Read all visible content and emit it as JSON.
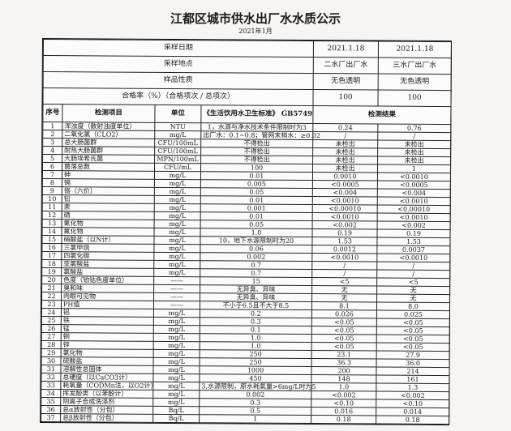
{
  "title": "江都区城市供水出厂水水质公示",
  "subtitle": "2021年1月",
  "meta": [
    {
      "label": "采样日期",
      "v1": "2021.1.18",
      "v2": "2021.1.18"
    },
    {
      "label": "采样地点",
      "v1": "二水厂出厂水",
      "v2": "三水厂出厂水"
    },
    {
      "label": "样品性质",
      "v1": "无色透明",
      "v2": "无色透明"
    },
    {
      "label": "合格率（%）（合格项次 / 总项次）",
      "v1": "100",
      "v2": "100"
    }
  ],
  "headers": {
    "no": "序号",
    "item": "检测项目",
    "unit": "单位",
    "standard": "《生活饮用水卫生标准》 GB5749",
    "result": "检测结果"
  },
  "rows": [
    [
      "1",
      "浑浊度（散射浊度单位）",
      "NTU",
      "1，水源与净水技术条件限制时为3",
      "0.24",
      "0.76"
    ],
    [
      "2",
      "二氧化氯（CLO2）",
      "mg/L",
      "出厂水：0.1~0.8；管网末梢水：≥0.02",
      "/",
      "/"
    ],
    [
      "3",
      "总大肠菌群",
      "CFU/100mL",
      "不得检出",
      "未检出",
      "未检出"
    ],
    [
      "4",
      "耐热大肠菌群",
      "CFU/100mL",
      "不得检出",
      "未检出",
      "未检出"
    ],
    [
      "5",
      "大肠埃希氏菌",
      "MPN/100mL",
      "不得检出",
      "未检出",
      "未检出"
    ],
    [
      "6",
      "菌落总数",
      "CFU/mL",
      "100",
      "未检出",
      "1"
    ],
    [
      "7",
      "砷",
      "mg/L",
      "0.01",
      "0.0010",
      "<0.0010"
    ],
    [
      "8",
      "镉",
      "mg/L",
      "0.005",
      "<0.0005",
      "<0.0005"
    ],
    [
      "9",
      "铬（六价）",
      "mg/L",
      "0.05",
      "<0.004",
      "<0.004"
    ],
    [
      "10",
      "铅",
      "mg/L",
      "0.01",
      "<0.0010",
      "<0.0010"
    ],
    [
      "11",
      "汞",
      "mg/L",
      "0.001",
      "<0.00010",
      "<0.00010"
    ],
    [
      "12",
      "硒",
      "mg/L",
      "0.01",
      "<0.0010",
      "<0.0010"
    ],
    [
      "13",
      "氰化物",
      "mg/L",
      "0.05",
      "<0.002",
      "<0.002"
    ],
    [
      "14",
      "氟化物",
      "mg/L",
      "1.0",
      "0.19",
      "0.19"
    ],
    [
      "15",
      "硝酸盐（以N计）",
      "mg/L",
      "10，地下水源限制时为20",
      "1.53",
      "1.53"
    ],
    [
      "16",
      "三氯甲烷",
      "mg/L",
      "0.06",
      "0.0012",
      "0.0037"
    ],
    [
      "17",
      "四氯化碳",
      "mg/L",
      "0.002",
      "<0.0010",
      "<0.0010"
    ],
    [
      "18",
      "亚氯酸盐",
      "mg/L",
      "0.7",
      "/",
      "/"
    ],
    [
      "19",
      "氯酸盐",
      "mg/L",
      "0.7",
      "/",
      "/"
    ],
    [
      "20",
      "色度（铂钴色度单位）",
      "——",
      "15",
      "<5",
      "<5"
    ],
    [
      "21",
      "臭和味",
      "——",
      "无异臭、异味",
      "无",
      "无"
    ],
    [
      "22",
      "肉眼可见物",
      "——",
      "无异臭、异味",
      "无",
      "无"
    ],
    [
      "23",
      "PH值",
      "——",
      "不小于6.5且不大于8.5",
      "8.1",
      "8.0"
    ],
    [
      "24",
      "铝",
      "mg/L",
      "0.2",
      "0.026",
      "0.025"
    ],
    [
      "25",
      "铁",
      "mg/L",
      "0.3",
      "<0.05",
      "<0.05"
    ],
    [
      "26",
      "锰",
      "mg/L",
      "0.1",
      "<0.05",
      "<0.05"
    ],
    [
      "27",
      "铜",
      "mg/L",
      "1.0",
      "<0.05",
      "<0.05"
    ],
    [
      "28",
      "锌",
      "mg/L",
      "1.0",
      "<0.05",
      "<0.05"
    ],
    [
      "29",
      "氯化物",
      "mg/L",
      "250",
      "23.1",
      "27.9"
    ],
    [
      "30",
      "硫酸盐",
      "mg/L",
      "250",
      "36.3",
      "36.0"
    ],
    [
      "31",
      "溶解性总固体",
      "mg/L",
      "1000",
      "200",
      "214"
    ],
    [
      "32",
      "总硬度（以CaCO3计）",
      "mg/L",
      "450",
      "148",
      "161"
    ],
    [
      "33",
      "耗氧量（CODMn法，以O2计）",
      "mg/L",
      "3,水源限制，原水耗氧量>6mg/L时为5",
      "1.0",
      "1.3"
    ],
    [
      "34",
      "挥发酚类（以苯酚计）",
      "mg/L",
      "0.002",
      "<0.002",
      "<0.002"
    ],
    [
      "35",
      "阴离子合成洗涤剂",
      "mg/L",
      "0.3",
      "<0.10",
      "<0.10"
    ],
    [
      "36",
      "总α放射性（分包）",
      "Bq/L",
      "0.5",
      "0.016",
      "0.014"
    ],
    [
      "37",
      "总β放射性（分包）",
      "Bq/L",
      "1",
      "0.18",
      "0.18"
    ]
  ]
}
